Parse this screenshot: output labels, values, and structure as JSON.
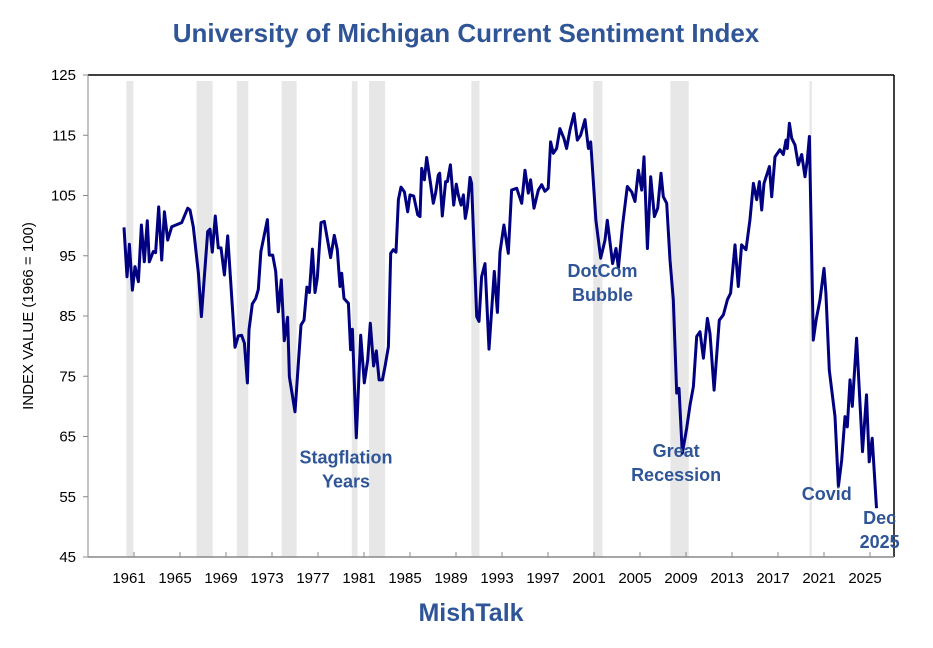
{
  "chart_data": {
    "type": "line",
    "title": "University of Michigan Current Sentiment Index",
    "ylabel": "INDEX VALUE (1966 = 100)",
    "xlabel": "",
    "ylim": [
      45,
      125
    ],
    "yticks": [
      45,
      55,
      65,
      75,
      85,
      95,
      105,
      115,
      125
    ],
    "xlim": [
      1957.5,
      2030.8
    ],
    "xticks": [
      1961,
      1965,
      1969,
      1973,
      1977,
      1981,
      1985,
      1989,
      1993,
      1997,
      2001,
      2005,
      2009,
      2013,
      2017,
      2021,
      2025
    ],
    "grid": false,
    "legend": "none",
    "line_color": "#000080",
    "annotation_color": "#2F5597",
    "recession_color": "#E7E7E7",
    "recessions": [
      [
        1960.6,
        1961.2
      ],
      [
        1966.7,
        1968.1
      ],
      [
        1970.2,
        1971.2
      ],
      [
        1974.1,
        1975.4
      ],
      [
        1980.2,
        1980.7
      ],
      [
        1981.7,
        1983.1
      ],
      [
        1990.6,
        1991.3
      ],
      [
        2001.2,
        2002.0
      ],
      [
        2007.9,
        2009.5
      ],
      [
        2020.0,
        2020.2
      ]
    ],
    "annotations": [
      {
        "lines": [
          "Stagflation",
          "Years"
        ],
        "year": 1979.7,
        "value": 60.5
      },
      {
        "lines": [
          "DotCom",
          "Bubble"
        ],
        "year": 2002.0,
        "value": 91.5
      },
      {
        "lines": [
          "Great",
          "Recession"
        ],
        "year": 2008.4,
        "value": 61.6
      },
      {
        "lines": [
          "Covid"
        ],
        "year": 2021.5,
        "value": 54.5
      },
      {
        "lines": [
          "Dec",
          "2025"
        ],
        "year": 2026.1,
        "value": 50.5
      }
    ],
    "series": [
      {
        "x": [
          1960.39,
          1960.65,
          1960.86,
          1961.12,
          1961.35,
          1961.64,
          1961.9,
          1962.16,
          1962.42,
          1962.59,
          1962.94,
          1963.14,
          1963.41,
          1963.67,
          1963.9,
          1964.19,
          1964.54,
          1965.41,
          1965.93,
          1966.13,
          1966.42,
          1966.86,
          1967.12,
          1967.67,
          1967.87,
          1968.07,
          1968.33,
          1968.59,
          1968.83,
          1969.12,
          1969.41,
          1970.04,
          1970.33,
          1970.62,
          1970.86,
          1971.12,
          1971.26,
          1971.55,
          1971.84,
          1972.07,
          1972.3,
          1972.86,
          1973.03,
          1973.32,
          1973.58,
          1973.81,
          1974.07,
          1974.33,
          1974.62,
          1974.77,
          1975.26,
          1975.78,
          1976.04,
          1976.3,
          1976.51,
          1976.77,
          1977.0,
          1977.2,
          1977.52,
          1977.81,
          1978.36,
          1978.68,
          1978.94,
          1979.17,
          1979.32,
          1979.52,
          1979.9,
          1980.1,
          1980.25,
          1980.59,
          1980.97,
          1981.29,
          1981.58,
          1981.81,
          1982.1,
          1982.33,
          1982.57,
          1982.86,
          1983.09,
          1983.38,
          1983.58,
          1983.81,
          1984.04,
          1984.25,
          1984.48,
          1984.77,
          1985.06,
          1985.26,
          1985.58,
          1985.93,
          1986.13,
          1986.28,
          1986.51,
          1986.71,
          1987.0,
          1987.29,
          1987.49,
          1987.72,
          1987.84,
          1988.07,
          1988.36,
          1988.51,
          1988.77,
          1989.06,
          1989.29,
          1989.46,
          1989.7,
          1989.9,
          1990.07,
          1990.25,
          1990.48,
          1990.62,
          1991.06,
          1991.26,
          1991.49,
          1991.78,
          1992.13,
          1992.59,
          1992.86,
          1993.09,
          1993.43,
          1993.81,
          1994.1,
          1994.54,
          1994.97,
          1995.26,
          1995.55,
          1995.75,
          1996.04,
          1996.42,
          1996.71,
          1996.99,
          1997.28,
          1997.49,
          1997.72,
          1998.01,
          1998.3,
          1998.64,
          1998.88,
          1999.17,
          1999.52,
          1999.81,
          2000.1,
          2000.48,
          2000.77,
          2000.97,
          2001.43,
          2001.84,
          2002.22,
          2002.42,
          2002.88,
          2003.17,
          2003.38,
          2003.75,
          2004.16,
          2004.54,
          2004.83,
          2005.12,
          2005.41,
          2005.61,
          2005.9,
          2006.19,
          2006.51,
          2006.8,
          2007.09,
          2007.29,
          2007.58,
          2007.87,
          2008.16,
          2008.45,
          2008.65,
          2008.94,
          2009.32,
          2009.61,
          2009.9,
          2010.19,
          2010.48,
          2010.77,
          2011.12,
          2011.35,
          2011.7,
          2012.16,
          2012.51,
          2012.86,
          2013.14,
          2013.52,
          2013.81,
          2014.1,
          2014.48,
          2014.82,
          2015.12,
          2015.41,
          2015.64,
          2015.84,
          2016.04,
          2016.51,
          2016.71,
          2017.0,
          2017.43,
          2017.72,
          2017.96,
          2018.07,
          2018.25,
          2018.45,
          2018.74,
          2019.03,
          2019.32,
          2019.61,
          2019.81,
          2019.99,
          2020.33,
          2020.57,
          2020.91,
          2021.26,
          2021.43,
          2021.72,
          2022.22,
          2022.51,
          2022.8,
          2023.09,
          2023.29,
          2023.52,
          2023.72,
          2024.1,
          2024.33,
          2024.61,
          2024.96,
          2025.19,
          2025.45,
          2025.83
        ],
        "values": [
          99.7,
          91.5,
          96.9,
          89.3,
          93.2,
          90.7,
          100.1,
          94.0,
          100.8,
          94.0,
          95.7,
          95.5,
          103.1,
          94.3,
          102.3,
          97.6,
          99.8,
          100.5,
          102.9,
          102.6,
          99.8,
          92.1,
          84.9,
          99.0,
          99.4,
          95.6,
          101.6,
          96.3,
          96.3,
          91.8,
          98.3,
          79.8,
          81.7,
          81.8,
          80.5,
          73.9,
          82.7,
          87.0,
          87.9,
          89.4,
          95.7,
          101.0,
          95.1,
          95.1,
          92.4,
          85.7,
          91.0,
          80.9,
          84.8,
          74.9,
          69.1,
          83.5,
          84.3,
          89.8,
          88.9,
          96.1,
          88.9,
          91.3,
          100.5,
          100.7,
          94.7,
          98.4,
          96.0,
          89.9,
          92.1,
          87.9,
          87.1,
          79.4,
          82.8,
          64.8,
          81.8,
          73.9,
          77.7,
          83.8,
          76.7,
          79.2,
          74.4,
          74.4,
          76.6,
          79.9,
          95.4,
          96.0,
          95.6,
          104.3,
          106.4,
          105.6,
          102.3,
          105.1,
          104.9,
          101.8,
          101.5,
          109.5,
          107.6,
          111.3,
          107.6,
          103.7,
          105.4,
          108.4,
          108.7,
          101.6,
          107.3,
          107.3,
          110.1,
          103.4,
          106.9,
          105.1,
          103.4,
          105.1,
          101.2,
          103.1,
          108.0,
          107.0,
          84.9,
          84.1,
          91.5,
          93.7,
          79.5,
          92.4,
          85.6,
          95.6,
          100.1,
          95.4,
          105.9,
          106.2,
          103.7,
          109.2,
          105.4,
          107.6,
          102.9,
          105.9,
          106.8,
          105.7,
          106.2,
          113.9,
          112.0,
          112.8,
          116.1,
          114.5,
          112.8,
          115.9,
          118.6,
          114.2,
          115.0,
          117.6,
          112.8,
          113.9,
          100.9,
          94.6,
          97.6,
          100.9,
          93.7,
          96.2,
          93.0,
          100.1,
          106.5,
          105.6,
          104.0,
          109.2,
          105.9,
          111.4,
          96.2,
          108.1,
          101.5,
          102.9,
          108.7,
          104.8,
          103.7,
          94.3,
          87.7,
          72.2,
          73.0,
          62.2,
          66.4,
          70.2,
          73.3,
          81.6,
          82.4,
          78.0,
          84.6,
          82.1,
          72.7,
          84.3,
          85.2,
          87.7,
          88.8,
          96.8,
          89.9,
          96.8,
          96.0,
          100.9,
          107.0,
          104.3,
          107.3,
          102.6,
          107.0,
          109.8,
          104.8,
          111.4,
          112.6,
          111.8,
          114.2,
          112.8,
          117.0,
          114.5,
          113.4,
          110.1,
          111.8,
          108.1,
          110.9,
          114.8,
          81.0,
          84.3,
          87.7,
          92.9,
          88.8,
          76.0,
          68.3,
          56.7,
          61.1,
          68.3,
          66.6,
          74.4,
          70.0,
          81.3,
          72.7,
          62.5,
          71.9,
          60.8,
          64.7,
          53.1
        ]
      }
    ]
  },
  "footer": {
    "brand": "MishTalk"
  }
}
